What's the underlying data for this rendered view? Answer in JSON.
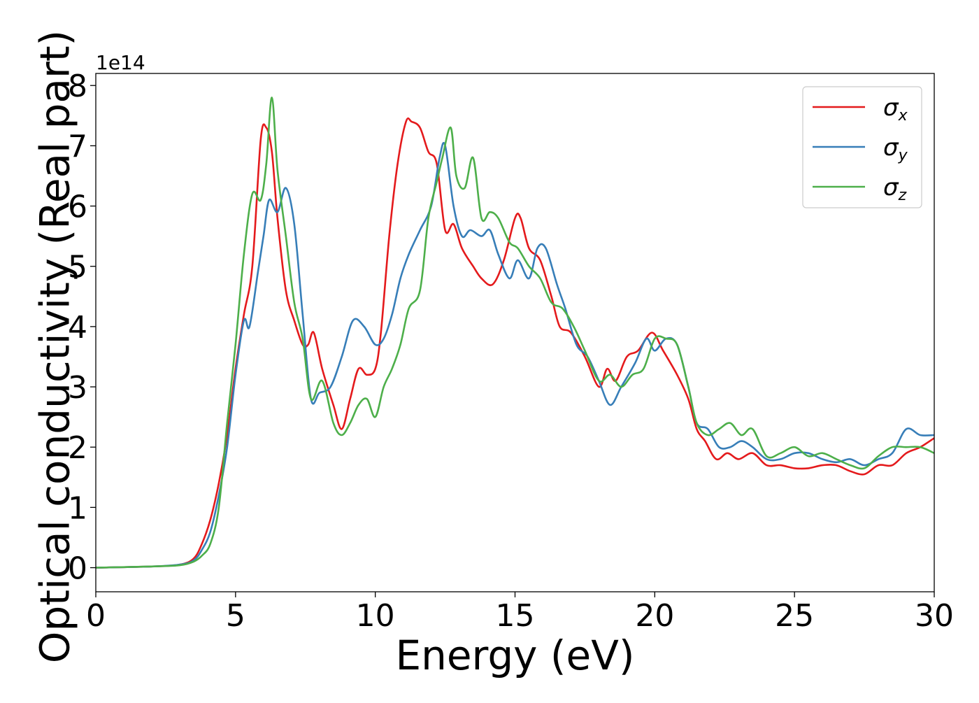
{
  "chart_data": {
    "type": "line",
    "xlabel": "Energy (eV)",
    "ylabel": "Optical conductivity (Real part)",
    "y_offset_text": "1e14",
    "xlim": [
      0,
      30
    ],
    "ylim": [
      -0.4,
      8.2
    ],
    "x_ticks": [
      0,
      5,
      10,
      15,
      20,
      25,
      30
    ],
    "y_ticks": [
      0,
      1,
      2,
      3,
      4,
      5,
      6,
      7,
      8
    ],
    "grid": false,
    "legend_position": "top-right",
    "colors": {
      "sigma_x": "#e41a1c",
      "sigma_y": "#377eb8",
      "sigma_z": "#4daf4a"
    },
    "series": [
      {
        "name": "σx",
        "legend": {
          "base": "σ",
          "sub": "x"
        },
        "color": "#e41a1c",
        "points": [
          [
            0,
            0
          ],
          [
            2,
            0.02
          ],
          [
            3,
            0.05
          ],
          [
            3.5,
            0.15
          ],
          [
            3.8,
            0.4
          ],
          [
            4.1,
            0.8
          ],
          [
            4.4,
            1.4
          ],
          [
            4.7,
            2.2
          ],
          [
            5.0,
            3.3
          ],
          [
            5.3,
            4.2
          ],
          [
            5.6,
            5.0
          ],
          [
            5.9,
            7.1
          ],
          [
            6.1,
            7.3
          ],
          [
            6.3,
            6.9
          ],
          [
            6.5,
            5.8
          ],
          [
            6.8,
            4.6
          ],
          [
            7.1,
            4.1
          ],
          [
            7.4,
            3.7
          ],
          [
            7.6,
            3.7
          ],
          [
            7.8,
            3.9
          ],
          [
            8.1,
            3.3
          ],
          [
            8.5,
            2.7
          ],
          [
            8.8,
            2.3
          ],
          [
            9.1,
            2.8
          ],
          [
            9.4,
            3.3
          ],
          [
            9.7,
            3.2
          ],
          [
            10.0,
            3.3
          ],
          [
            10.2,
            3.9
          ],
          [
            10.5,
            5.5
          ],
          [
            10.8,
            6.7
          ],
          [
            11.1,
            7.4
          ],
          [
            11.3,
            7.4
          ],
          [
            11.6,
            7.3
          ],
          [
            11.9,
            6.9
          ],
          [
            12.2,
            6.7
          ],
          [
            12.5,
            5.6
          ],
          [
            12.8,
            5.7
          ],
          [
            13.1,
            5.3
          ],
          [
            13.5,
            5.0
          ],
          [
            13.8,
            4.8
          ],
          [
            14.2,
            4.7
          ],
          [
            14.6,
            5.1
          ],
          [
            15.0,
            5.8
          ],
          [
            15.2,
            5.8
          ],
          [
            15.5,
            5.3
          ],
          [
            15.9,
            5.1
          ],
          [
            16.3,
            4.5
          ],
          [
            16.6,
            4.0
          ],
          [
            17.0,
            3.9
          ],
          [
            17.5,
            3.5
          ],
          [
            18.0,
            3.0
          ],
          [
            18.3,
            3.3
          ],
          [
            18.6,
            3.1
          ],
          [
            19.0,
            3.5
          ],
          [
            19.4,
            3.6
          ],
          [
            19.9,
            3.9
          ],
          [
            20.3,
            3.6
          ],
          [
            20.8,
            3.2
          ],
          [
            21.2,
            2.8
          ],
          [
            21.5,
            2.3
          ],
          [
            21.8,
            2.1
          ],
          [
            22.2,
            1.8
          ],
          [
            22.6,
            1.9
          ],
          [
            23.0,
            1.8
          ],
          [
            23.5,
            1.9
          ],
          [
            24.0,
            1.7
          ],
          [
            24.5,
            1.7
          ],
          [
            25.0,
            1.65
          ],
          [
            25.5,
            1.65
          ],
          [
            26.0,
            1.7
          ],
          [
            26.5,
            1.7
          ],
          [
            27.0,
            1.6
          ],
          [
            27.5,
            1.55
          ],
          [
            28.0,
            1.7
          ],
          [
            28.5,
            1.7
          ],
          [
            29.0,
            1.9
          ],
          [
            29.5,
            2.0
          ],
          [
            30.0,
            2.15
          ]
        ]
      },
      {
        "name": "σy",
        "legend": {
          "base": "σ",
          "sub": "y"
        },
        "color": "#377eb8",
        "points": [
          [
            0,
            0
          ],
          [
            2,
            0.02
          ],
          [
            3,
            0.05
          ],
          [
            3.5,
            0.12
          ],
          [
            3.8,
            0.3
          ],
          [
            4.1,
            0.6
          ],
          [
            4.4,
            1.2
          ],
          [
            4.7,
            2.0
          ],
          [
            5.0,
            3.2
          ],
          [
            5.3,
            4.1
          ],
          [
            5.5,
            4.0
          ],
          [
            5.8,
            4.9
          ],
          [
            6.0,
            5.5
          ],
          [
            6.2,
            6.1
          ],
          [
            6.5,
            5.9
          ],
          [
            6.8,
            6.3
          ],
          [
            7.1,
            5.7
          ],
          [
            7.4,
            4.2
          ],
          [
            7.7,
            2.8
          ],
          [
            8.0,
            2.9
          ],
          [
            8.4,
            3.0
          ],
          [
            8.8,
            3.5
          ],
          [
            9.2,
            4.1
          ],
          [
            9.6,
            4.0
          ],
          [
            10.0,
            3.7
          ],
          [
            10.3,
            3.8
          ],
          [
            10.6,
            4.2
          ],
          [
            10.9,
            4.8
          ],
          [
            11.2,
            5.2
          ],
          [
            11.6,
            5.6
          ],
          [
            12.0,
            6.0
          ],
          [
            12.3,
            6.8
          ],
          [
            12.5,
            7.0
          ],
          [
            12.8,
            6.0
          ],
          [
            13.1,
            5.5
          ],
          [
            13.4,
            5.6
          ],
          [
            13.8,
            5.5
          ],
          [
            14.1,
            5.6
          ],
          [
            14.4,
            5.2
          ],
          [
            14.8,
            4.8
          ],
          [
            15.1,
            5.1
          ],
          [
            15.5,
            4.8
          ],
          [
            15.8,
            5.3
          ],
          [
            16.1,
            5.3
          ],
          [
            16.5,
            4.7
          ],
          [
            16.8,
            4.3
          ],
          [
            17.2,
            3.7
          ],
          [
            17.6,
            3.5
          ],
          [
            18.0,
            3.1
          ],
          [
            18.4,
            2.7
          ],
          [
            18.8,
            3.0
          ],
          [
            19.3,
            3.4
          ],
          [
            19.7,
            3.8
          ],
          [
            20.0,
            3.6
          ],
          [
            20.4,
            3.8
          ],
          [
            20.8,
            3.7
          ],
          [
            21.2,
            3.0
          ],
          [
            21.5,
            2.4
          ],
          [
            21.9,
            2.3
          ],
          [
            22.3,
            2.0
          ],
          [
            22.7,
            2.0
          ],
          [
            23.1,
            2.1
          ],
          [
            23.5,
            2.0
          ],
          [
            24.0,
            1.8
          ],
          [
            24.5,
            1.8
          ],
          [
            25.0,
            1.9
          ],
          [
            25.5,
            1.9
          ],
          [
            26.0,
            1.8
          ],
          [
            26.5,
            1.75
          ],
          [
            27.0,
            1.8
          ],
          [
            27.5,
            1.7
          ],
          [
            28.0,
            1.8
          ],
          [
            28.5,
            1.9
          ],
          [
            29.0,
            2.3
          ],
          [
            29.5,
            2.2
          ],
          [
            30.0,
            2.2
          ]
        ]
      },
      {
        "name": "σz",
        "legend": {
          "base": "σ",
          "sub": "z"
        },
        "color": "#4daf4a",
        "points": [
          [
            0,
            0
          ],
          [
            2,
            0.02
          ],
          [
            3,
            0.04
          ],
          [
            3.5,
            0.1
          ],
          [
            3.8,
            0.2
          ],
          [
            4.1,
            0.4
          ],
          [
            4.4,
            1.0
          ],
          [
            4.7,
            2.4
          ],
          [
            5.0,
            3.7
          ],
          [
            5.3,
            5.2
          ],
          [
            5.6,
            6.2
          ],
          [
            5.9,
            6.1
          ],
          [
            6.1,
            6.7
          ],
          [
            6.3,
            7.8
          ],
          [
            6.5,
            6.6
          ],
          [
            6.8,
            5.5
          ],
          [
            7.1,
            4.4
          ],
          [
            7.4,
            3.8
          ],
          [
            7.7,
            2.8
          ],
          [
            8.1,
            3.1
          ],
          [
            8.5,
            2.4
          ],
          [
            8.8,
            2.2
          ],
          [
            9.1,
            2.4
          ],
          [
            9.4,
            2.7
          ],
          [
            9.7,
            2.8
          ],
          [
            10.0,
            2.5
          ],
          [
            10.3,
            3.0
          ],
          [
            10.6,
            3.3
          ],
          [
            10.9,
            3.7
          ],
          [
            11.2,
            4.3
          ],
          [
            11.6,
            4.6
          ],
          [
            11.9,
            5.8
          ],
          [
            12.2,
            6.4
          ],
          [
            12.4,
            6.8
          ],
          [
            12.7,
            7.3
          ],
          [
            12.9,
            6.5
          ],
          [
            13.2,
            6.3
          ],
          [
            13.5,
            6.8
          ],
          [
            13.8,
            5.8
          ],
          [
            14.1,
            5.9
          ],
          [
            14.4,
            5.8
          ],
          [
            14.8,
            5.4
          ],
          [
            15.1,
            5.3
          ],
          [
            15.5,
            5.0
          ],
          [
            15.9,
            4.8
          ],
          [
            16.3,
            4.4
          ],
          [
            16.7,
            4.3
          ],
          [
            17.1,
            4.0
          ],
          [
            17.5,
            3.6
          ],
          [
            18.0,
            3.1
          ],
          [
            18.4,
            3.2
          ],
          [
            18.8,
            3.0
          ],
          [
            19.2,
            3.2
          ],
          [
            19.6,
            3.3
          ],
          [
            20.0,
            3.8
          ],
          [
            20.4,
            3.8
          ],
          [
            20.8,
            3.7
          ],
          [
            21.2,
            3.0
          ],
          [
            21.5,
            2.4
          ],
          [
            21.9,
            2.2
          ],
          [
            22.3,
            2.3
          ],
          [
            22.7,
            2.4
          ],
          [
            23.1,
            2.2
          ],
          [
            23.5,
            2.3
          ],
          [
            24.0,
            1.85
          ],
          [
            24.5,
            1.9
          ],
          [
            25.0,
            2.0
          ],
          [
            25.5,
            1.85
          ],
          [
            26.0,
            1.9
          ],
          [
            26.5,
            1.8
          ],
          [
            27.0,
            1.7
          ],
          [
            27.5,
            1.65
          ],
          [
            28.0,
            1.85
          ],
          [
            28.5,
            2.0
          ],
          [
            29.0,
            2.0
          ],
          [
            29.5,
            2.0
          ],
          [
            30.0,
            1.9
          ]
        ]
      }
    ]
  }
}
